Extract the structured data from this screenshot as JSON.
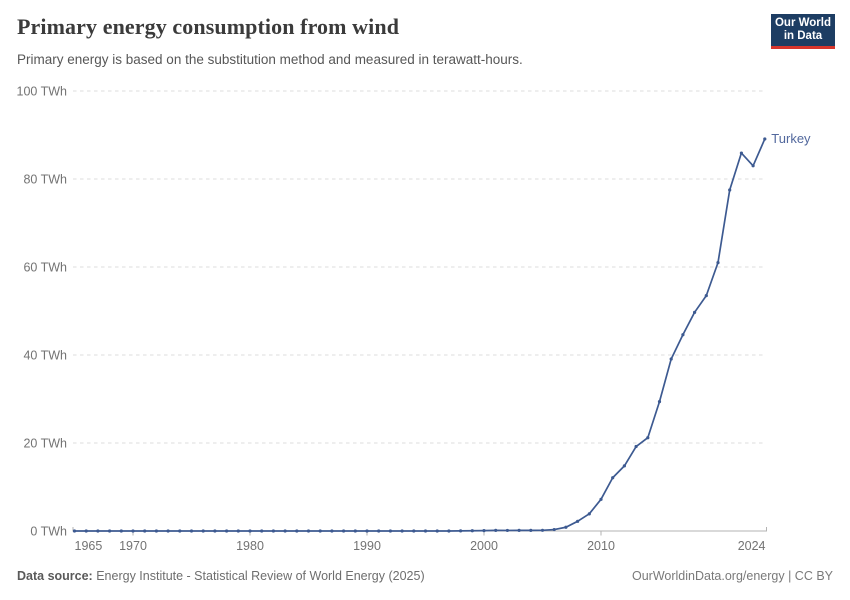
{
  "header": {
    "title": "Primary energy consumption from wind",
    "subtitle": "Primary energy is based on the substitution method and measured in terawatt-hours.",
    "logo": {
      "line1": "Our World",
      "line2": "in Data",
      "bg_color": "#1d3d63",
      "accent_color": "#d7352c"
    }
  },
  "chart_data": {
    "type": "line",
    "title": "Primary energy consumption from wind",
    "unit": "TWh",
    "xlabel": "",
    "ylabel": "",
    "xlim": [
      1965,
      2024
    ],
    "ylim": [
      0,
      100
    ],
    "grid": "horizontal-dashed",
    "y_ticks": [
      0,
      20,
      40,
      60,
      80,
      100
    ],
    "y_tick_labels": [
      "0 TWh",
      "20 TWh",
      "40 TWh",
      "60 TWh",
      "80 TWh",
      "100 TWh"
    ],
    "x_ticks": [
      1965,
      1970,
      1980,
      1990,
      2000,
      2010,
      2024
    ],
    "x_tick_labels": [
      "1965",
      "1970",
      "1980",
      "1990",
      "2000",
      "2010",
      "2024"
    ],
    "grid_color": "#dcdcdc",
    "axis_color": "#b3b3b3",
    "tick_label_color": "#737373",
    "series": [
      {
        "name": "Turkey",
        "color": "#3d5a91",
        "label_color": "#52689d",
        "points": [
          [
            1965,
            0
          ],
          [
            1966,
            0
          ],
          [
            1967,
            0
          ],
          [
            1968,
            0
          ],
          [
            1969,
            0
          ],
          [
            1970,
            0
          ],
          [
            1971,
            0
          ],
          [
            1972,
            0
          ],
          [
            1973,
            0
          ],
          [
            1974,
            0
          ],
          [
            1975,
            0
          ],
          [
            1976,
            0
          ],
          [
            1977,
            0
          ],
          [
            1978,
            0
          ],
          [
            1979,
            0
          ],
          [
            1980,
            0
          ],
          [
            1981,
            0
          ],
          [
            1982,
            0
          ],
          [
            1983,
            0
          ],
          [
            1984,
            0
          ],
          [
            1985,
            0
          ],
          [
            1986,
            0
          ],
          [
            1987,
            0
          ],
          [
            1988,
            0
          ],
          [
            1989,
            0
          ],
          [
            1990,
            0
          ],
          [
            1991,
            0
          ],
          [
            1992,
            0
          ],
          [
            1993,
            0
          ],
          [
            1994,
            0
          ],
          [
            1995,
            0
          ],
          [
            1996,
            0
          ],
          [
            1997,
            0
          ],
          [
            1998,
            0.02
          ],
          [
            1999,
            0.06
          ],
          [
            2000,
            0.09
          ],
          [
            2001,
            0.15
          ],
          [
            2002,
            0.13
          ],
          [
            2003,
            0.15
          ],
          [
            2004,
            0.15
          ],
          [
            2005,
            0.16
          ],
          [
            2006,
            0.33
          ],
          [
            2007,
            0.85
          ],
          [
            2008,
            2.2
          ],
          [
            2009,
            3.9
          ],
          [
            2010,
            7.2
          ],
          [
            2011,
            12.1
          ],
          [
            2012,
            14.8
          ],
          [
            2013,
            19.2
          ],
          [
            2014,
            21.2
          ],
          [
            2015,
            29.4
          ],
          [
            2016,
            39.1
          ],
          [
            2017,
            44.6
          ],
          [
            2018,
            49.7
          ],
          [
            2019,
            53.5
          ],
          [
            2020,
            61
          ],
          [
            2021,
            77.5
          ],
          [
            2022,
            85.9
          ],
          [
            2023,
            83
          ],
          [
            2024,
            89.1
          ]
        ]
      }
    ]
  },
  "footer": {
    "source_label": "Data source:",
    "source_text": "Energy Institute - Statistical Review of World Energy (2025)",
    "right_text": "OurWorldinData.org/energy | CC BY"
  }
}
